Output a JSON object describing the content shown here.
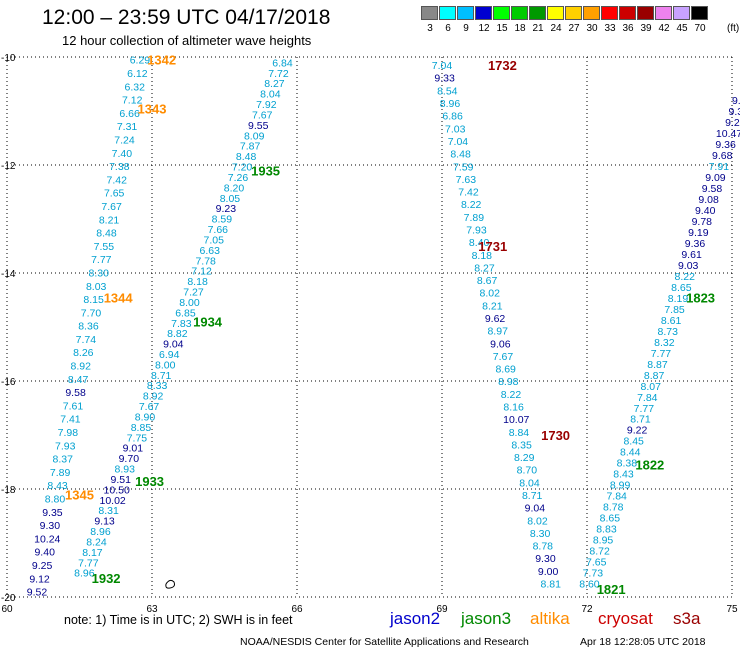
{
  "header": {
    "title": "12:00 – 23:59 UTC 04/17/2018",
    "subtitle": "12 hour collection of altimeter wave heights"
  },
  "legend": {
    "colorbar": [
      {
        "label": "3",
        "color": "#888888"
      },
      {
        "label": "6",
        "color": "#00ffff"
      },
      {
        "label": "9",
        "color": "#00bfff"
      },
      {
        "label": "12",
        "color": "#0000d0"
      },
      {
        "label": "15",
        "color": "#00ff00"
      },
      {
        "label": "18",
        "color": "#00cc00"
      },
      {
        "label": "21",
        "color": "#009900"
      },
      {
        "label": "24",
        "color": "#ffff00"
      },
      {
        "label": "27",
        "color": "#ffd000"
      },
      {
        "label": "30",
        "color": "#ffa000"
      },
      {
        "label": "33",
        "color": "#ff0000"
      },
      {
        "label": "36",
        "color": "#cc0000"
      },
      {
        "label": "39",
        "color": "#990000"
      },
      {
        "label": "42",
        "color": "#ee82ee"
      },
      {
        "label": "45",
        "color": "#c8a2ff"
      },
      {
        "label": "70",
        "color": "#000000"
      }
    ],
    "unit": "(ft)"
  },
  "chart_data": {
    "type": "scatter",
    "title": "12:00 – 23:59 UTC 04/17/2018",
    "subtitle": "12 hour collection of altimeter wave heights",
    "x_label": "",
    "y_label": "",
    "xlim": [
      60,
      75
    ],
    "ylim": [
      -20,
      -10
    ],
    "x_ticks": [
      "60",
      "63",
      "66",
      "69",
      "72",
      "75"
    ],
    "y_ticks": [
      "-10",
      "-12",
      "-14",
      "-16",
      "-18",
      "-20"
    ],
    "grid": true,
    "sat_colors": {
      "jason2": "#0000cc",
      "jason3": "#008800",
      "altika": "#ff8c00",
      "cryosat": "#cc0000",
      "s3a": "#990000"
    },
    "wave_colors": {
      "light": "#00a0d0",
      "dark": "#00008b"
    },
    "tracks": [
      {
        "name": "altika track 1342-1345",
        "x0": 62.75,
        "y0": -10.05,
        "x1": 60.62,
        "y1": -19.9,
        "values": [
          "6.29",
          "6.12",
          "6.32",
          "7.12",
          "6.66",
          "7.31",
          "7.24",
          "7.40",
          "7.38",
          "7.42",
          "7.65",
          "7.67",
          "8.21",
          "8.48",
          "7.55",
          "7.77",
          "8.30",
          "8.03",
          "8.15",
          "7.70",
          "8.36",
          "7.74",
          "8.26",
          "8.92",
          "8.47",
          "9.58",
          "7.61",
          "7.41",
          "7.98",
          "7.93",
          "8.37",
          "7.89",
          "8.43",
          "8.80",
          "9.35",
          "9.30",
          "10.24",
          "9.40",
          "9.25",
          "9.12",
          "9.52"
        ],
        "labels": [
          {
            "text": "1342",
            "lon": 63.2,
            "lat": -10.05,
            "color": "altika"
          },
          {
            "text": "1343",
            "lon": 63.0,
            "lat": -10.95,
            "color": "altika"
          },
          {
            "text": "1344",
            "lon": 62.3,
            "lat": -14.45,
            "color": "altika"
          },
          {
            "text": "1345",
            "lon": 61.5,
            "lat": -18.1,
            "color": "altika"
          }
        ]
      },
      {
        "name": "jason3 track 1932-1935",
        "x0": 65.7,
        "y0": -10.1,
        "x1": 61.6,
        "y1": -19.55,
        "values": [
          "6.84",
          "7.72",
          "8.27",
          "8.04",
          "7.92",
          "7.67",
          "9.55",
          "8.09",
          "7.87",
          "8.48",
          "7.20",
          "7.26",
          "8.20",
          "8.05",
          "9.23",
          "8.59",
          "7.66",
          "7.05",
          "6.63",
          "7.78",
          "7.12",
          "8.18",
          "7.27",
          "8.00",
          "6.85",
          "7.83",
          "8.82",
          "9.04",
          "6.94",
          "8.00",
          "8.71",
          "8.33",
          "8.92",
          "7.67",
          "8.90",
          "8.85",
          "7.75",
          "9.01",
          "9.70",
          "8.93",
          "9.51",
          "10.50",
          "10.02",
          "8.31",
          "9.13",
          "8.96",
          "8.24",
          "8.17",
          "7.77",
          "8.96"
        ],
        "labels": [
          {
            "text": "1935",
            "lon": 65.35,
            "lat": -12.1,
            "color": "jason3"
          },
          {
            "text": "1934",
            "lon": 64.15,
            "lat": -14.9,
            "color": "jason3"
          },
          {
            "text": "1933",
            "lon": 62.95,
            "lat": -17.85,
            "color": "jason3"
          },
          {
            "text": "1932",
            "lon": 62.05,
            "lat": -19.65,
            "color": "jason3"
          }
        ]
      },
      {
        "name": "cryosat track 1730-1732",
        "x0": 69.0,
        "y0": -10.15,
        "x1": 71.25,
        "y1": -19.75,
        "values": [
          "7.04",
          "9.33",
          "8.54",
          "8.96",
          "6.86",
          "7.03",
          "7.04",
          "8.48",
          "7.59",
          "7.63",
          "7.42",
          "8.22",
          "7.89",
          "7.93",
          "8.40",
          "8.18",
          "8.27",
          "8.67",
          "8.02",
          "8.21",
          "9.62",
          "8.97",
          "9.06",
          "7.67",
          "8.69",
          "8.98",
          "8.22",
          "8.16",
          "10.07",
          "8.84",
          "8.35",
          "8.29",
          "8.70",
          "8.04",
          "8.71",
          "9.04",
          "8.02",
          "8.30",
          "8.78",
          "9.30",
          "9.00",
          "8.81"
        ],
        "labels": [
          {
            "text": "1732",
            "lon": 70.25,
            "lat": -10.15,
            "color": "s3a"
          },
          {
            "text": "1731",
            "lon": 70.05,
            "lat": -13.5,
            "color": "s3a"
          },
          {
            "text": "1730",
            "lon": 71.35,
            "lat": -17.0,
            "color": "s3a"
          }
        ]
      },
      {
        "name": "jason3 track 1821-1823 (east)",
        "x0": 75.15,
        "y0": -10.8,
        "x1": 72.05,
        "y1": -19.75,
        "values": [
          "9.6",
          "9.3",
          "9.2",
          "10.47",
          "9.36",
          "9.68",
          "7.91",
          "9.09",
          "9.58",
          "9.08",
          "9.40",
          "9.78",
          "9.19",
          "9.36",
          "9.61",
          "9.03",
          "8.22",
          "8.65",
          "8.19",
          "7.85",
          "8.61",
          "8.73",
          "8.32",
          "7.77",
          "8.87",
          "8.87",
          "8.07",
          "7.84",
          "7.77",
          "8.71",
          "9.22",
          "8.45",
          "8.44",
          "8.38",
          "8.43",
          "8.99",
          "7.84",
          "8.78",
          "8.65",
          "8.83",
          "8.95",
          "8.72",
          "7.65",
          "7.73",
          "8.60"
        ],
        "labels": [
          {
            "text": "1823",
            "lon": 74.35,
            "lat": -14.45,
            "color": "jason3"
          },
          {
            "text": "1822",
            "lon": 73.3,
            "lat": -17.55,
            "color": "jason3"
          },
          {
            "text": "1821",
            "lon": 72.5,
            "lat": -19.85,
            "color": "jason3"
          }
        ]
      }
    ]
  },
  "footer": {
    "note": "note: 1) Time is in UTC; 2) SWH is in feet",
    "satellites": [
      {
        "name": "jason2",
        "color": "#0000cc"
      },
      {
        "name": "jason3",
        "color": "#008800"
      },
      {
        "name": "altika",
        "color": "#ff8c00"
      },
      {
        "name": "cryosat",
        "color": "#cc0000"
      },
      {
        "name": "s3a",
        "color": "#990000"
      }
    ],
    "credit": "NOAA/NESDIS Center for Satellite Applications and Research",
    "timestamp": "Apr 18 12:28:05 UTC 2018"
  }
}
